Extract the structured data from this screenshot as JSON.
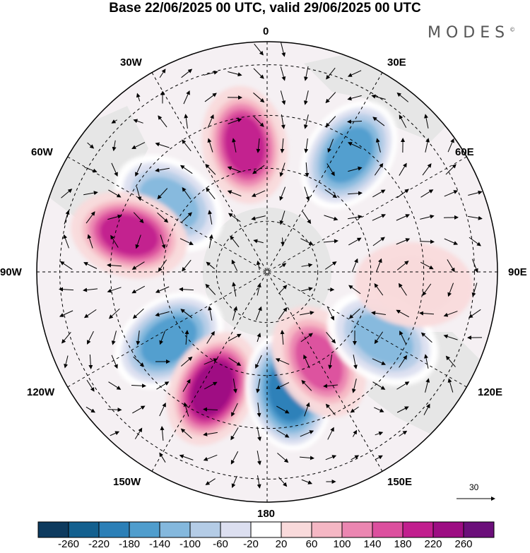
{
  "title": "Base 22/06/2025 00 UTC, valid 29/06/2025 00 UTC",
  "logo": "MODES",
  "logo_mark": "©",
  "map": {
    "projection": "south-polar-stereographic",
    "longitude_labels": {
      "top": "0",
      "top_right": "30E",
      "right_upper": "60E",
      "right": "90E",
      "right_lower": "120E",
      "bottom_right": "150E",
      "bottom": "180",
      "bottom_left": "150W",
      "left_lower": "120W",
      "left": "90W",
      "left_upper": "60W",
      "top_left": "30W"
    },
    "reference_vector": "30",
    "anomaly_centers": [
      {
        "name": "positive-anomaly",
        "lon": "10W",
        "level": "220"
      },
      {
        "name": "negative-anomaly",
        "lon": "35E",
        "level": "-180"
      },
      {
        "name": "negative-anomaly",
        "lon": "55W",
        "level": "-140"
      },
      {
        "name": "positive-anomaly",
        "lon": "75W",
        "level": "220"
      },
      {
        "name": "negative-anomaly",
        "lon": "125W",
        "level": "-180"
      },
      {
        "name": "positive-anomaly",
        "lon": "155W",
        "level": "260"
      },
      {
        "name": "negative-anomaly",
        "lon": "170E",
        "level": "-220"
      },
      {
        "name": "positive-anomaly",
        "lon": "150E",
        "level": "180"
      },
      {
        "name": "negative-anomaly",
        "lon": "120E",
        "level": "-140"
      },
      {
        "name": "positive-anomaly",
        "lon": "95E",
        "level": "60"
      }
    ]
  },
  "colorbar": {
    "labels": [
      "-260",
      "-220",
      "-180",
      "-140",
      "-100",
      "-60",
      "-20",
      "20",
      "60",
      "100",
      "140",
      "180",
      "220",
      "260"
    ],
    "colors": [
      "#0d3a5e",
      "#13608f",
      "#2b7fb7",
      "#4f9dcd",
      "#84b8dd",
      "#b4cce6",
      "#dcdff0",
      "#ffffff",
      "#f9dadb",
      "#f5b7c4",
      "#eb86b1",
      "#dc4f9e",
      "#c11e8e",
      "#9d0d83",
      "#6b0f7a"
    ]
  }
}
